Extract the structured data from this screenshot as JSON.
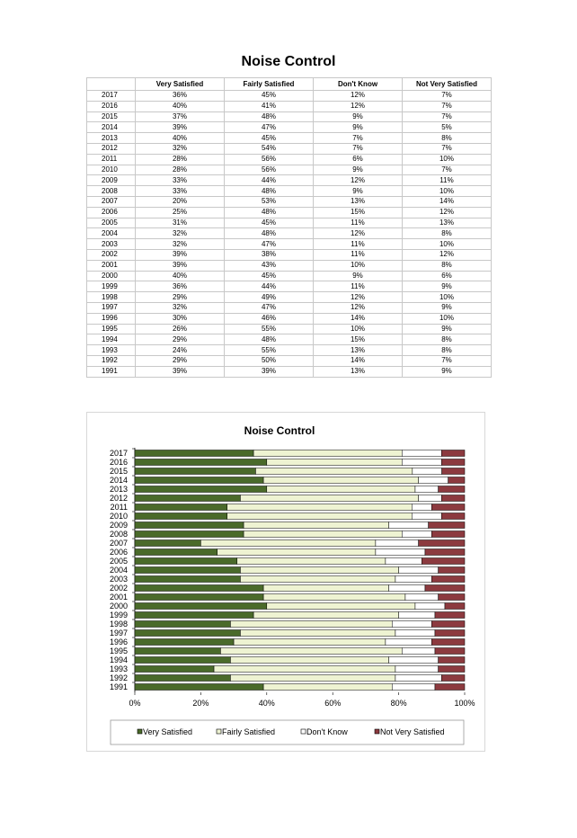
{
  "page_title": "Noise Control",
  "table": {
    "headers": [
      "",
      "Very Satisfied",
      "Fairly Satisfied",
      "Don't Know",
      "Not Very Satisfied"
    ],
    "rows": [
      [
        "2017",
        "36%",
        "45%",
        "12%",
        "7%"
      ],
      [
        "2016",
        "40%",
        "41%",
        "12%",
        "7%"
      ],
      [
        "2015",
        "37%",
        "48%",
        "9%",
        "7%"
      ],
      [
        "2014",
        "39%",
        "47%",
        "9%",
        "5%"
      ],
      [
        "2013",
        "40%",
        "45%",
        "7%",
        "8%"
      ],
      [
        "2012",
        "32%",
        "54%",
        "7%",
        "7%"
      ],
      [
        "2011",
        "28%",
        "56%",
        "6%",
        "10%"
      ],
      [
        "2010",
        "28%",
        "56%",
        "9%",
        "7%"
      ],
      [
        "2009",
        "33%",
        "44%",
        "12%",
        "11%"
      ],
      [
        "2008",
        "33%",
        "48%",
        "9%",
        "10%"
      ],
      [
        "2007",
        "20%",
        "53%",
        "13%",
        "14%"
      ],
      [
        "2006",
        "25%",
        "48%",
        "15%",
        "12%"
      ],
      [
        "2005",
        "31%",
        "45%",
        "11%",
        "13%"
      ],
      [
        "2004",
        "32%",
        "48%",
        "12%",
        "8%"
      ],
      [
        "2003",
        "32%",
        "47%",
        "11%",
        "10%"
      ],
      [
        "2002",
        "39%",
        "38%",
        "11%",
        "12%"
      ],
      [
        "2001",
        "39%",
        "43%",
        "10%",
        "8%"
      ],
      [
        "2000",
        "40%",
        "45%",
        "9%",
        "6%"
      ],
      [
        "1999",
        "36%",
        "44%",
        "11%",
        "9%"
      ],
      [
        "1998",
        "29%",
        "49%",
        "12%",
        "10%"
      ],
      [
        "1997",
        "32%",
        "47%",
        "12%",
        "9%"
      ],
      [
        "1996",
        "30%",
        "46%",
        "14%",
        "10%"
      ],
      [
        "1995",
        "26%",
        "55%",
        "10%",
        "9%"
      ],
      [
        "1994",
        "29%",
        "48%",
        "15%",
        "8%"
      ],
      [
        "1993",
        "24%",
        "55%",
        "13%",
        "8%"
      ],
      [
        "1992",
        "29%",
        "50%",
        "14%",
        "7%"
      ],
      [
        "1991",
        "39%",
        "39%",
        "13%",
        "9%"
      ]
    ]
  },
  "chart_data": {
    "type": "bar",
    "orientation": "horizontal",
    "stacked": "percent",
    "title": "Noise Control",
    "categories": [
      "2017",
      "2016",
      "2015",
      "2014",
      "2013",
      "2012",
      "2011",
      "2010",
      "2009",
      "2008",
      "2007",
      "2006",
      "2005",
      "2004",
      "2003",
      "2002",
      "2001",
      "2000",
      "1999",
      "1998",
      "1997",
      "1996",
      "1995",
      "1994",
      "1993",
      "1992",
      "1991"
    ],
    "series": [
      {
        "name": "Very Satisfied",
        "color": "#4a6a2a",
        "values": [
          36,
          40,
          37,
          39,
          40,
          32,
          28,
          28,
          33,
          33,
          20,
          25,
          31,
          32,
          32,
          39,
          39,
          40,
          36,
          29,
          32,
          30,
          26,
          29,
          24,
          29,
          39
        ]
      },
      {
        "name": "Fairly Satisfied",
        "color": "#eef3d2",
        "values": [
          45,
          41,
          48,
          47,
          45,
          54,
          56,
          56,
          44,
          48,
          53,
          48,
          45,
          48,
          47,
          38,
          43,
          45,
          44,
          49,
          47,
          46,
          55,
          48,
          55,
          50,
          39
        ]
      },
      {
        "name": "Don't Know",
        "color": "#ffffff",
        "values": [
          12,
          12,
          9,
          9,
          7,
          7,
          6,
          9,
          12,
          9,
          13,
          15,
          11,
          12,
          11,
          11,
          10,
          9,
          11,
          12,
          12,
          14,
          10,
          15,
          13,
          14,
          13
        ]
      },
      {
        "name": "Not Very Satisfied",
        "color": "#8c3a3f",
        "values": [
          7,
          7,
          7,
          5,
          8,
          7,
          10,
          7,
          11,
          10,
          14,
          12,
          13,
          8,
          10,
          12,
          8,
          6,
          9,
          10,
          9,
          10,
          9,
          8,
          8,
          7,
          9
        ]
      }
    ],
    "xlim": [
      0,
      100
    ],
    "x_ticks": [
      "0%",
      "20%",
      "40%",
      "60%",
      "80%",
      "100%"
    ],
    "legend": "bottom",
    "grid": false
  }
}
